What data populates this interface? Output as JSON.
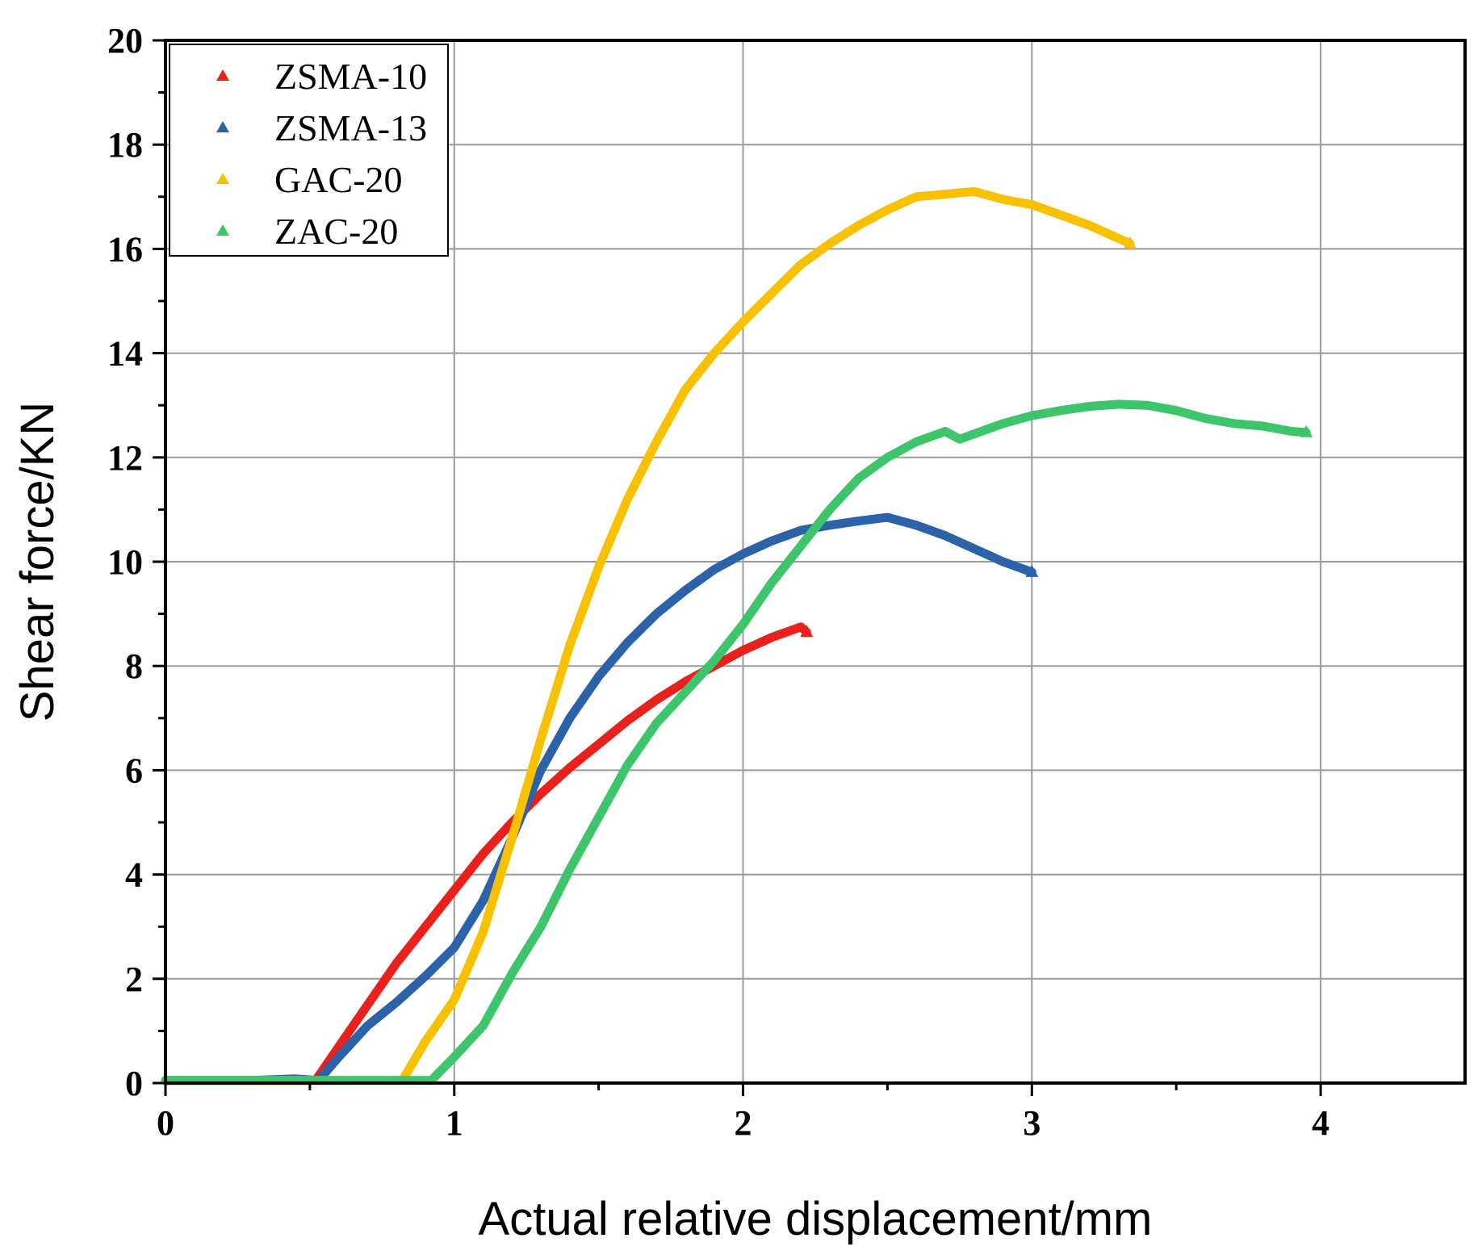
{
  "chart_data": {
    "type": "line",
    "title": "",
    "xlabel": "Actual relative displacement/mm",
    "ylabel": "Shear force/KN",
    "xlim": [
      0,
      4.5
    ],
    "ylim": [
      0,
      20
    ],
    "x_ticks": [
      0,
      1,
      2,
      3,
      4
    ],
    "y_ticks": [
      0,
      2,
      4,
      6,
      8,
      10,
      12,
      14,
      16,
      18,
      20
    ],
    "grid": true,
    "legend_position": "top-left",
    "marker": "triangle",
    "series": [
      {
        "name": "ZSMA-10",
        "color": "#e8211c",
        "points": [
          [
            0,
            0.05
          ],
          [
            0.3,
            0.05
          ],
          [
            0.52,
            0.05
          ],
          [
            0.6,
            0.7
          ],
          [
            0.7,
            1.5
          ],
          [
            0.8,
            2.3
          ],
          [
            0.9,
            3.0
          ],
          [
            1.0,
            3.7
          ],
          [
            1.1,
            4.4
          ],
          [
            1.2,
            5.0
          ],
          [
            1.3,
            5.55
          ],
          [
            1.4,
            6.05
          ],
          [
            1.5,
            6.5
          ],
          [
            1.6,
            6.95
          ],
          [
            1.7,
            7.35
          ],
          [
            1.8,
            7.7
          ],
          [
            1.9,
            8.0
          ],
          [
            2.0,
            8.3
          ],
          [
            2.1,
            8.55
          ],
          [
            2.2,
            8.75
          ],
          [
            2.22,
            8.65
          ]
        ]
      },
      {
        "name": "ZSMA-13",
        "color": "#2b62a8",
        "points": [
          [
            0,
            0.05
          ],
          [
            0.3,
            0.05
          ],
          [
            0.45,
            0.08
          ],
          [
            0.53,
            0.05
          ],
          [
            0.6,
            0.5
          ],
          [
            0.7,
            1.1
          ],
          [
            0.8,
            1.55
          ],
          [
            0.9,
            2.05
          ],
          [
            1.0,
            2.6
          ],
          [
            1.1,
            3.5
          ],
          [
            1.2,
            4.7
          ],
          [
            1.3,
            6.0
          ],
          [
            1.4,
            7.0
          ],
          [
            1.5,
            7.8
          ],
          [
            1.6,
            8.45
          ],
          [
            1.7,
            9.0
          ],
          [
            1.8,
            9.45
          ],
          [
            1.9,
            9.85
          ],
          [
            2.0,
            10.15
          ],
          [
            2.1,
            10.4
          ],
          [
            2.2,
            10.6
          ],
          [
            2.3,
            10.7
          ],
          [
            2.4,
            10.78
          ],
          [
            2.5,
            10.85
          ],
          [
            2.6,
            10.7
          ],
          [
            2.7,
            10.5
          ],
          [
            2.8,
            10.25
          ],
          [
            2.9,
            10.0
          ],
          [
            3.0,
            9.8
          ]
        ]
      },
      {
        "name": "GAC-20",
        "color": "#f8c100",
        "points": [
          [
            0,
            0.05
          ],
          [
            0.5,
            0.05
          ],
          [
            0.82,
            0.05
          ],
          [
            0.9,
            0.8
          ],
          [
            1.0,
            1.6
          ],
          [
            1.1,
            2.9
          ],
          [
            1.2,
            4.7
          ],
          [
            1.3,
            6.6
          ],
          [
            1.4,
            8.4
          ],
          [
            1.5,
            9.9
          ],
          [
            1.6,
            11.2
          ],
          [
            1.7,
            12.3
          ],
          [
            1.8,
            13.3
          ],
          [
            1.9,
            14.0
          ],
          [
            2.0,
            14.6
          ],
          [
            2.1,
            15.15
          ],
          [
            2.2,
            15.7
          ],
          [
            2.3,
            16.1
          ],
          [
            2.4,
            16.45
          ],
          [
            2.5,
            16.75
          ],
          [
            2.6,
            17.0
          ],
          [
            2.7,
            17.05
          ],
          [
            2.8,
            17.1
          ],
          [
            2.9,
            16.95
          ],
          [
            3.0,
            16.85
          ],
          [
            3.1,
            16.65
          ],
          [
            3.2,
            16.45
          ],
          [
            3.3,
            16.2
          ],
          [
            3.34,
            16.1
          ]
        ]
      },
      {
        "name": "ZAC-20",
        "color": "#3ec46a",
        "points": [
          [
            0,
            0.05
          ],
          [
            0.5,
            0.05
          ],
          [
            0.92,
            0.05
          ],
          [
            1.0,
            0.5
          ],
          [
            1.1,
            1.1
          ],
          [
            1.2,
            2.1
          ],
          [
            1.3,
            3.0
          ],
          [
            1.4,
            4.1
          ],
          [
            1.5,
            5.1
          ],
          [
            1.6,
            6.1
          ],
          [
            1.7,
            6.9
          ],
          [
            1.8,
            7.5
          ],
          [
            1.9,
            8.1
          ],
          [
            2.0,
            8.8
          ],
          [
            2.1,
            9.6
          ],
          [
            2.2,
            10.3
          ],
          [
            2.3,
            11.0
          ],
          [
            2.4,
            11.6
          ],
          [
            2.5,
            12.0
          ],
          [
            2.6,
            12.3
          ],
          [
            2.7,
            12.5
          ],
          [
            2.75,
            12.35
          ],
          [
            2.8,
            12.45
          ],
          [
            2.9,
            12.65
          ],
          [
            3.0,
            12.8
          ],
          [
            3.1,
            12.9
          ],
          [
            3.2,
            12.98
          ],
          [
            3.3,
            13.02
          ],
          [
            3.4,
            13.0
          ],
          [
            3.5,
            12.9
          ],
          [
            3.6,
            12.75
          ],
          [
            3.7,
            12.65
          ],
          [
            3.8,
            12.6
          ],
          [
            3.9,
            12.5
          ],
          [
            3.95,
            12.48
          ]
        ]
      }
    ]
  }
}
